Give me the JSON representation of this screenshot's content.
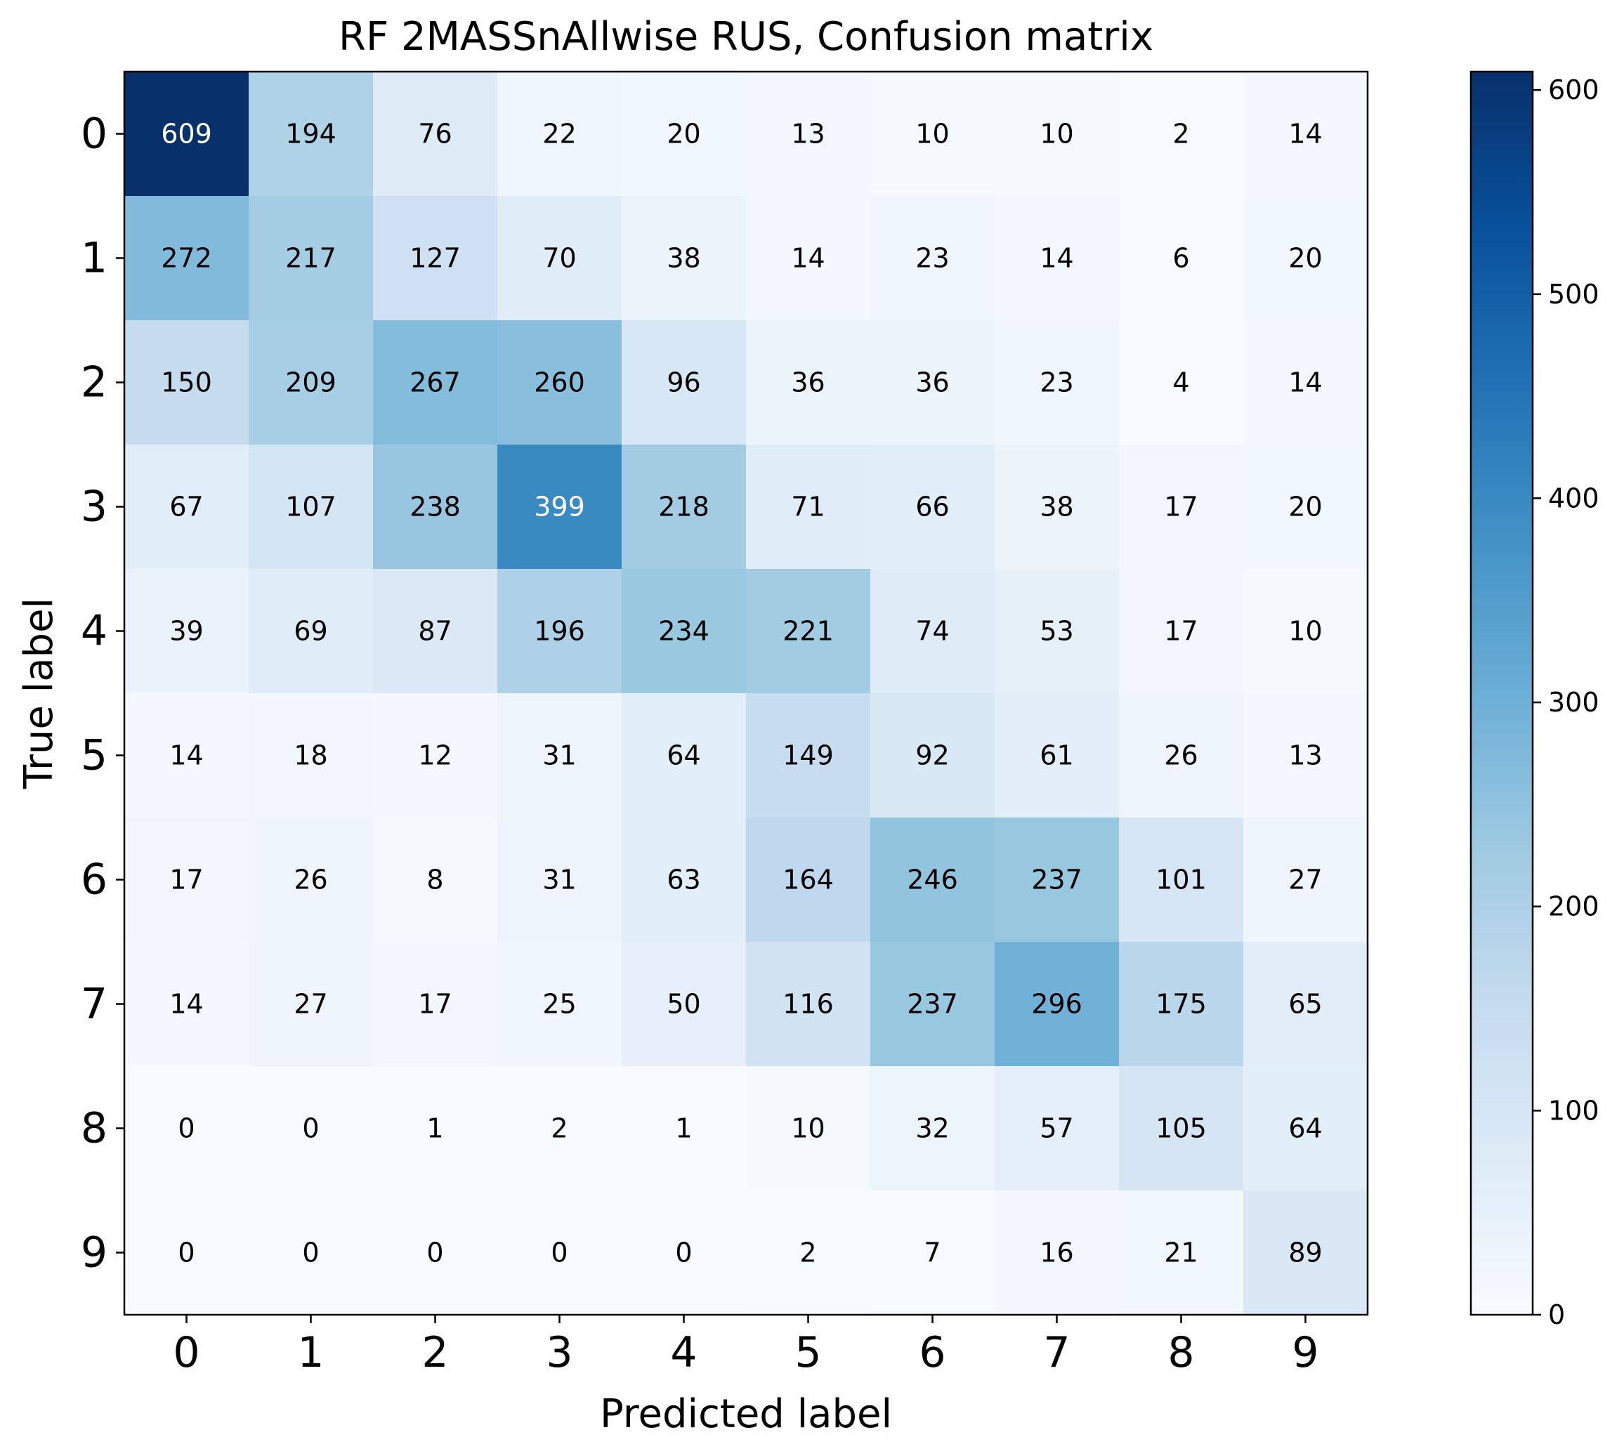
{
  "chart_data": {
    "type": "heatmap",
    "title": "RF 2MASSnAllwise RUS, Confusion matrix",
    "xlabel": "Predicted label",
    "ylabel": "True label",
    "x_categories": [
      "0",
      "1",
      "2",
      "3",
      "4",
      "5",
      "6",
      "7",
      "8",
      "9"
    ],
    "y_categories": [
      "0",
      "1",
      "2",
      "3",
      "4",
      "5",
      "6",
      "7",
      "8",
      "9"
    ],
    "values": [
      [
        609,
        194,
        76,
        22,
        20,
        13,
        10,
        10,
        2,
        14
      ],
      [
        272,
        217,
        127,
        70,
        38,
        14,
        23,
        14,
        6,
        20
      ],
      [
        150,
        209,
        267,
        260,
        96,
        36,
        36,
        23,
        4,
        14
      ],
      [
        67,
        107,
        238,
        399,
        218,
        71,
        66,
        38,
        17,
        20
      ],
      [
        39,
        69,
        87,
        196,
        234,
        221,
        74,
        53,
        17,
        10
      ],
      [
        14,
        18,
        12,
        31,
        64,
        149,
        92,
        61,
        26,
        13
      ],
      [
        17,
        26,
        8,
        31,
        63,
        164,
        246,
        237,
        101,
        27
      ],
      [
        14,
        27,
        17,
        25,
        50,
        116,
        237,
        296,
        175,
        65
      ],
      [
        0,
        0,
        1,
        2,
        1,
        10,
        32,
        57,
        105,
        64
      ],
      [
        0,
        0,
        0,
        0,
        0,
        2,
        7,
        16,
        21,
        89
      ]
    ],
    "colorbar": {
      "colormap": "Blues",
      "min": 0,
      "max": 609,
      "ticks": [
        0,
        100,
        200,
        300,
        400,
        500,
        600
      ]
    },
    "grid": false
  }
}
